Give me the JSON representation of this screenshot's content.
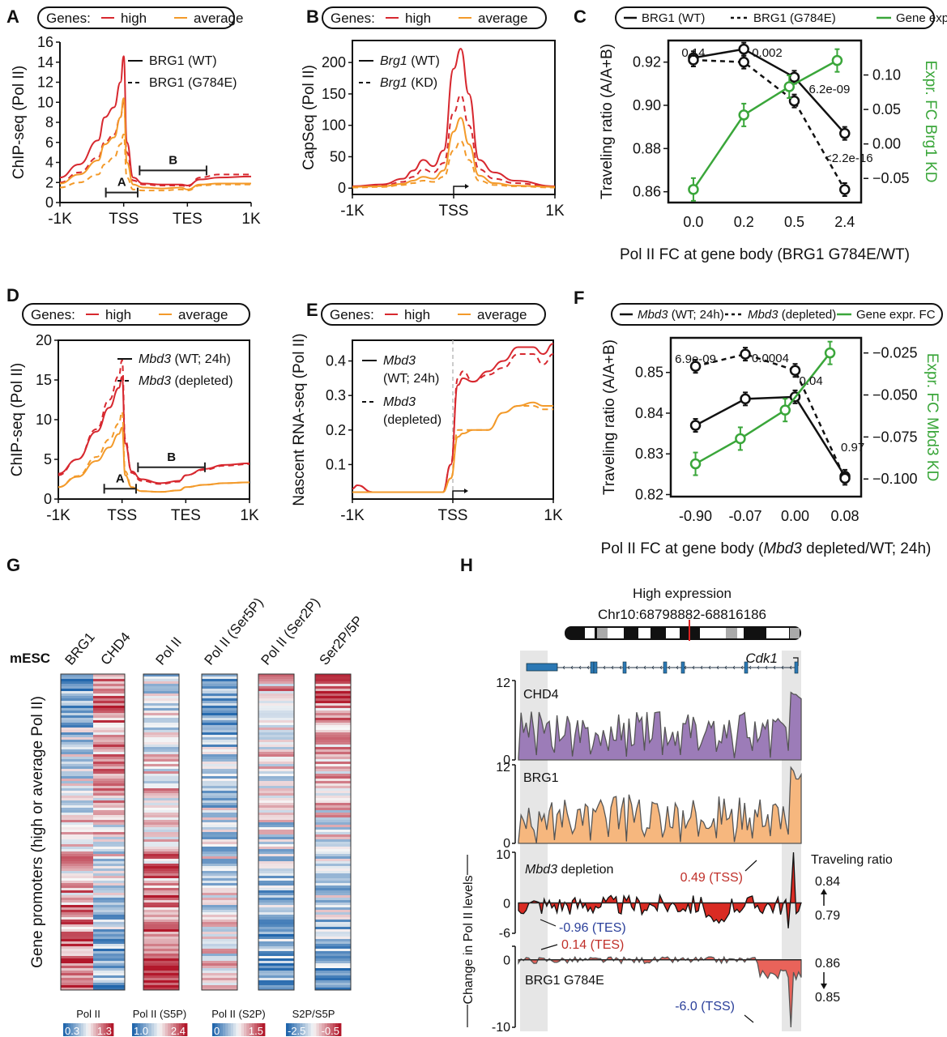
{
  "colors": {
    "high": "#d7282f",
    "average": "#f39a2a",
    "green": "#3aa63a",
    "black": "#111111",
    "chd4": "#9c7cb8",
    "brg1": "#f6b77e",
    "depletion": "#d92b23",
    "g784e": "#e9635a",
    "shade": "#e6e6e6",
    "red_text": "#c0302a",
    "blue_text": "#2a3f9a",
    "exon": "#2b78b4"
  },
  "chart_data": [
    {
      "panel": "A",
      "type": "line",
      "legend_box": {
        "prefix": "Genes:",
        "items": [
          "high",
          "average"
        ]
      },
      "line_legend": [
        "BRG1 (WT)",
        "BRG1 (G784E)"
      ],
      "ylabel": "ChIP-seq (Pol II)",
      "xlabel": "",
      "xticks": [
        "-1K",
        "TSS",
        "TES",
        "1K"
      ],
      "yticks": [
        0,
        2,
        4,
        6,
        8,
        10,
        12,
        14,
        16
      ],
      "ylim": [
        0,
        16
      ],
      "annotations": [
        {
          "label": "A",
          "from": 0.72,
          "to": 1.22,
          "y": 1.0
        },
        {
          "label": "B",
          "from": 1.25,
          "to": 2.3,
          "y": 3.2
        }
      ],
      "x": [
        0,
        0.3,
        0.6,
        0.7,
        0.85,
        0.95,
        1.0,
        1.05,
        1.15,
        1.3,
        1.6,
        1.9,
        2.0,
        2.2,
        2.5,
        3.0
      ],
      "series": [
        {
          "name": "high WT",
          "group": "high",
          "style": "solid",
          "values": [
            2.5,
            3.8,
            6.2,
            8.5,
            9.5,
            12,
            14.6,
            6,
            2.5,
            1.9,
            1.8,
            1.8,
            1.7,
            2.3,
            2.5,
            2.6
          ]
        },
        {
          "name": "high G784E",
          "group": "high",
          "style": "dashed",
          "values": [
            2.0,
            3.0,
            4.5,
            6.0,
            6.8,
            8.5,
            10.2,
            5,
            2.2,
            1.8,
            1.7,
            1.7,
            1.6,
            2.5,
            2.8,
            2.8
          ]
        },
        {
          "name": "average WT",
          "group": "average",
          "style": "solid",
          "values": [
            1.9,
            2.8,
            4.2,
            5.8,
            6.5,
            8.5,
            10.4,
            4,
            1.8,
            1.5,
            1.4,
            1.5,
            1.3,
            1.8,
            1.9,
            1.9
          ]
        },
        {
          "name": "average G784E",
          "group": "average",
          "style": "dashed",
          "values": [
            1.5,
            2.0,
            2.8,
            3.8,
            4.5,
            5.8,
            6.8,
            2.5,
            1.3,
            1.2,
            1.2,
            1.3,
            1.2,
            1.7,
            1.8,
            1.8
          ]
        }
      ]
    },
    {
      "panel": "B",
      "type": "line",
      "legend_box": {
        "prefix": "Genes:",
        "items": [
          "high",
          "average"
        ]
      },
      "line_legend": [
        "Brg1 (WT)",
        "Brg1 (KD)"
      ],
      "line_legend_italic": "Brg1",
      "ylabel": "CapSeq (Pol II)",
      "xlabel": "",
      "xticks": [
        "-1K",
        "TSS",
        "1K"
      ],
      "yticks": [
        0,
        50,
        100,
        150,
        200
      ],
      "ylim": [
        -10,
        235
      ],
      "x": [
        -1,
        -0.7,
        -0.5,
        -0.4,
        -0.3,
        -0.2,
        -0.1,
        0,
        0.07,
        0.15,
        0.25,
        0.4,
        0.6,
        1.0
      ],
      "series": [
        {
          "name": "high WT",
          "group": "high",
          "style": "solid",
          "values": [
            3,
            6,
            15,
            28,
            45,
            35,
            60,
            190,
            222,
            150,
            45,
            25,
            12,
            3
          ]
        },
        {
          "name": "high KD",
          "group": "high",
          "style": "dashed",
          "values": [
            2,
            4,
            10,
            18,
            30,
            25,
            40,
            120,
            148,
            100,
            30,
            15,
            8,
            2
          ]
        },
        {
          "name": "average WT",
          "group": "average",
          "style": "solid",
          "values": [
            2,
            3,
            7,
            12,
            18,
            15,
            28,
            90,
            112,
            70,
            20,
            8,
            4,
            2
          ]
        },
        {
          "name": "average KD",
          "group": "average",
          "style": "dashed",
          "values": [
            1,
            2,
            5,
            8,
            12,
            10,
            18,
            60,
            75,
            45,
            12,
            5,
            3,
            1
          ]
        }
      ]
    },
    {
      "panel": "C",
      "type": "line",
      "legend_box": {
        "items": [
          "BRG1 (WT)",
          "BRG1 (G784E)",
          "Gene expr. FC"
        ]
      },
      "ylabel": "Traveling ratio (A/A+B)",
      "ylabel_right": "Expr. FC Brg1 KD",
      "xlabel": "Pol II FC at gene body (BRG1 G784E/WT)",
      "categories": [
        "0.0",
        "0.2",
        "0.5",
        "2.4"
      ],
      "yticks": [
        "0.86",
        "0.88",
        "0.90",
        "0.92"
      ],
      "ylim": [
        0.855,
        0.93
      ],
      "yticks_right": [
        "-0.05",
        "0.00",
        "0.05",
        "0.10"
      ],
      "ylim_right": [
        -0.085,
        0.15
      ],
      "series": [
        {
          "name": "BRG1 (WT)",
          "axis": "left",
          "style": "solid",
          "values": [
            0.922,
            0.926,
            0.913,
            0.887
          ]
        },
        {
          "name": "BRG1 (G784E)",
          "axis": "left",
          "style": "dashed",
          "values": [
            0.921,
            0.92,
            0.902,
            0.861
          ]
        },
        {
          "name": "Gene expr. FC",
          "axis": "right",
          "style": "solid",
          "color": "green",
          "x_offset": [
            0,
            0,
            -0.1,
            -0.15
          ],
          "values": [
            -0.066,
            0.042,
            0.083,
            0.121
          ]
        }
      ],
      "pvalues": [
        "0.14",
        "0.002",
        "6.2e-09",
        "<2.2e-16"
      ]
    },
    {
      "panel": "D",
      "type": "line",
      "legend_box": {
        "prefix": "Genes:",
        "items": [
          "high",
          "average"
        ]
      },
      "line_legend": [
        "Mbd3 (WT; 24h)",
        "Mbd3 (depleted)"
      ],
      "line_legend_italic": "Mbd3",
      "ylabel": "ChIP-seq (Pol II)",
      "xlabel": "",
      "xticks": [
        "-1K",
        "TSS",
        "TES",
        "1K"
      ],
      "yticks": [
        0,
        5,
        10,
        15,
        20
      ],
      "ylim": [
        0,
        20
      ],
      "annotations": [
        {
          "label": "A",
          "from": 0.72,
          "to": 1.22,
          "y": 1.3
        },
        {
          "label": "B",
          "from": 1.25,
          "to": 2.3,
          "y": 4.0
        }
      ],
      "x": [
        0,
        0.3,
        0.6,
        0.8,
        0.95,
        1.0,
        1.05,
        1.15,
        1.3,
        1.6,
        1.9,
        2.0,
        2.3,
        2.6,
        3.0
      ],
      "series": [
        {
          "name": "high WT",
          "group": "high",
          "style": "solid",
          "values": [
            3.2,
            5,
            8.5,
            11.5,
            14,
            15.4,
            7,
            3.5,
            2.5,
            2.0,
            2.3,
            3,
            3.8,
            4.3,
            4.5
          ]
        },
        {
          "name": "high depleted",
          "group": "high",
          "style": "dashed",
          "values": [
            3.0,
            5,
            8.8,
            12.5,
            15.5,
            17.5,
            7.5,
            3.3,
            2.3,
            1.9,
            2.2,
            3,
            3.7,
            4.2,
            4.4
          ]
        },
        {
          "name": "average WT",
          "group": "average",
          "style": "solid",
          "values": [
            1.5,
            2.8,
            4.8,
            6.5,
            8.2,
            9.0,
            3,
            1.5,
            1.0,
            0.9,
            1.1,
            1.5,
            1.8,
            2.0,
            2.1
          ]
        },
        {
          "name": "average depleted",
          "group": "average",
          "style": "dashed",
          "values": [
            1.5,
            2.9,
            5.3,
            7.5,
            9.5,
            11.0,
            3.5,
            1.5,
            1.0,
            0.9,
            1.1,
            1.5,
            1.8,
            2.0,
            2.1
          ]
        }
      ]
    },
    {
      "panel": "E",
      "type": "line",
      "legend_box": {
        "prefix": "Genes:",
        "items": [
          "high",
          "average"
        ]
      },
      "line_legend": [
        "Mbd3 (WT; 24h)",
        "Mbd3 (depleted)"
      ],
      "line_legend_italic": "Mbd3",
      "ylabel": "Nascent RNA-seq (Pol II)",
      "xlabel": "",
      "xticks": [
        "-1K",
        "TSS",
        "1K"
      ],
      "yticks": [
        "0.1",
        "0.2",
        "0.3",
        "0.4"
      ],
      "ylim": [
        0,
        0.46
      ],
      "x": [
        -1,
        -0.95,
        -0.8,
        -0.5,
        -0.1,
        -0.02,
        0.05,
        0.1,
        0.2,
        0.35,
        0.5,
        0.65,
        0.8,
        0.9,
        1.0
      ],
      "series": [
        {
          "name": "high WT",
          "group": "high",
          "style": "solid",
          "values": [
            0.03,
            0.04,
            0.02,
            0.02,
            0.02,
            0.1,
            0.33,
            0.35,
            0.34,
            0.37,
            0.4,
            0.44,
            0.44,
            0.42,
            0.45
          ]
        },
        {
          "name": "high depleted",
          "group": "high",
          "style": "dashed",
          "values": [
            0.03,
            0.04,
            0.02,
            0.02,
            0.02,
            0.1,
            0.35,
            0.37,
            0.34,
            0.36,
            0.38,
            0.42,
            0.42,
            0.39,
            0.42
          ]
        },
        {
          "name": "average WT",
          "group": "average",
          "style": "solid",
          "values": [
            0.02,
            0.02,
            0.02,
            0.02,
            0.02,
            0.06,
            0.18,
            0.19,
            0.2,
            0.2,
            0.25,
            0.27,
            0.28,
            0.27,
            0.27
          ]
        },
        {
          "name": "average depleted",
          "group": "average",
          "style": "dashed",
          "values": [
            0.02,
            0.02,
            0.02,
            0.02,
            0.02,
            0.06,
            0.2,
            0.2,
            0.2,
            0.2,
            0.25,
            0.27,
            0.27,
            0.26,
            0.26
          ]
        }
      ]
    },
    {
      "panel": "F",
      "type": "line",
      "legend_box": {
        "items": [
          "Mbd3 (WT; 24h)",
          "Mbd3 (depleted)",
          "Gene expr. FC"
        ]
      },
      "ylabel": "Traveling ratio (A/A+B)",
      "ylabel_right": "Expr. FC Mbd3 KD",
      "xlabel": "Pol II FC at gene body (Mbd3 depleted/WT; 24h)",
      "categories": [
        "-0.90",
        "-0.07",
        "0.00",
        "0.08"
      ],
      "yticks": [
        "0.82",
        "0.83",
        "0.84",
        "0.85"
      ],
      "ylim": [
        0.8195,
        0.8585
      ],
      "yticks_right": [
        "-0.100",
        "-0.075",
        "-0.050",
        "-0.025"
      ],
      "ylim_right": [
        -0.1105,
        -0.016
      ],
      "series": [
        {
          "name": "Mbd3 (WT; 24h)",
          "axis": "left",
          "style": "solid",
          "values": [
            0.837,
            0.8435,
            0.844,
            0.8245
          ]
        },
        {
          "name": "Mbd3 (depleted)",
          "axis": "left",
          "style": "dashed",
          "values": [
            0.8515,
            0.8545,
            0.8505,
            0.824
          ]
        },
        {
          "name": "Gene expr. FC",
          "axis": "right",
          "style": "solid",
          "color": "green",
          "x_offset": [
            0,
            -0.1,
            -0.2,
            -0.3
          ],
          "values": [
            -0.091,
            -0.076,
            -0.059,
            -0.025
          ]
        }
      ],
      "pvalues": [
        "6.9e-09",
        "0.0004",
        "0.04",
        "0.97"
      ]
    },
    {
      "panel": "G",
      "type": "heatmap",
      "row_label": "mESC",
      "ylabel": "Gene promoters (high or average Pol II)",
      "columns": [
        "BRG1",
        "CHD4",
        "Pol II",
        "Pol II (Ser5P)",
        "Pol II (Ser2P)",
        "Ser2P/5P"
      ],
      "colorbars": [
        {
          "title": "Pol II",
          "min": "0.3",
          "max": "1.3"
        },
        {
          "title": "Pol II (S5P)",
          "min": "1.0",
          "max": "2.4"
        },
        {
          "title": "Pol II (S2P)",
          "min": "0",
          "max": "1.5"
        },
        {
          "title": "S2P/S5P",
          "min": "-2.5",
          "max": "-0.5"
        }
      ],
      "trends": {
        "BRG1": [
          -0.6,
          0.8
        ],
        "CHD4": [
          0.7,
          -0.6
        ],
        "Pol II": [
          -0.3,
          0.9
        ],
        "Pol II (Ser5P)": [
          -0.5,
          0.1
        ],
        "Pol II (Ser2P)": [
          0.3,
          -0.6
        ],
        "Ser2P/5P": [
          0.6,
          -0.6
        ]
      }
    },
    {
      "panel": "H",
      "type": "area",
      "title": "High expression",
      "locus": "Chr10:68798882-68816186",
      "gene": "Cdk1",
      "tracks": [
        {
          "label": "CHD4",
          "ymax": "12",
          "ymin": "0",
          "ylim": [
            0,
            12
          ]
        },
        {
          "label": "BRG1",
          "ymax": "12",
          "ymin": "0",
          "ylim": [
            0,
            12
          ]
        },
        {
          "label": "Mbd3 depletion",
          "label_italic": "Mbd3",
          "ymax": "10",
          "yzero": "0",
          "ymin": "-6",
          "ylim": [
            -6,
            10
          ]
        },
        {
          "label": "BRG1 G784E",
          "yzero": "0",
          "ymin": "-10",
          "ylim": [
            -10,
            2
          ]
        }
      ],
      "ylabel": "Change in Pol II levels",
      "annotations": {
        "mbd3_tss": "0.49 (TSS)",
        "mbd3_tes": "-0.96 (TES)",
        "g784e_tes": "0.14 (TES)",
        "g784e_tss": "-6.0 (TSS)"
      },
      "traveling_ratio": {
        "title": "Traveling ratio",
        "mbd3": [
          "0.84",
          "0.79"
        ],
        "g784e": [
          "0.86",
          "0.85"
        ]
      }
    }
  ],
  "panel_letters": [
    "A",
    "B",
    "C",
    "D",
    "E",
    "F",
    "G",
    "H"
  ]
}
